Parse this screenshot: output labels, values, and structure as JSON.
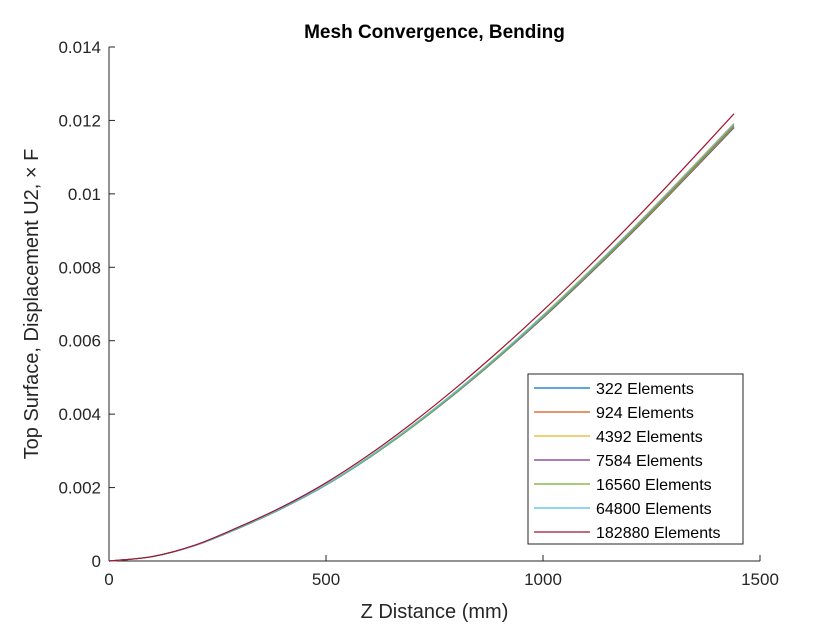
{
  "chart_data": {
    "type": "line",
    "title": "Mesh Convergence, Bending",
    "xlabel": "Z Distance (mm)",
    "ylabel": "Top Surface, Displacement U2, × F",
    "xlim": [
      0,
      1500
    ],
    "ylim": [
      0,
      0.014
    ],
    "xticks": [
      0,
      500,
      1000,
      1500
    ],
    "xtick_labels": [
      "0",
      "500",
      "1000",
      "1500"
    ],
    "yticks": [
      0,
      0.002,
      0.004,
      0.006,
      0.008,
      0.01,
      0.012,
      0.014
    ],
    "ytick_labels": [
      "0",
      "0.002",
      "0.004",
      "0.006",
      "0.008",
      "0.01",
      "0.012",
      "0.014"
    ],
    "grid": false,
    "legend_position": "bottom-right",
    "x": [
      0,
      100,
      200,
      300,
      400,
      500,
      600,
      700,
      800,
      900,
      1000,
      1100,
      1200,
      1300,
      1440
    ],
    "series": [
      {
        "name": "322 Elements",
        "color": "#0072BD",
        "values": [
          0,
          0.00012,
          0.00043,
          0.0009,
          0.00144,
          0.00207,
          0.00282,
          0.00366,
          0.00459,
          0.00558,
          0.00663,
          0.00774,
          0.00889,
          0.01009,
          0.01182
        ]
      },
      {
        "name": "924 Elements",
        "color": "#D95319",
        "values": [
          0,
          0.00012,
          0.00043,
          0.0009,
          0.00144,
          0.00208,
          0.00283,
          0.00368,
          0.00461,
          0.0056,
          0.00666,
          0.00777,
          0.00893,
          0.01013,
          0.01186
        ]
      },
      {
        "name": "4392 Elements",
        "color": "#EDB120",
        "values": [
          0,
          0.00012,
          0.00043,
          0.00091,
          0.00145,
          0.00209,
          0.00285,
          0.0037,
          0.00463,
          0.00563,
          0.0067,
          0.00782,
          0.00898,
          0.01019,
          0.01192
        ]
      },
      {
        "name": "7584 Elements",
        "color": "#7E2F8E",
        "values": [
          0,
          0.00012,
          0.00043,
          0.0009,
          0.00144,
          0.00207,
          0.00282,
          0.00366,
          0.00458,
          0.00557,
          0.00662,
          0.00773,
          0.00888,
          0.01008,
          0.0118
        ]
      },
      {
        "name": "16560 Elements",
        "color": "#77AC30",
        "values": [
          0,
          0.00012,
          0.00043,
          0.0009,
          0.00144,
          0.00207,
          0.00282,
          0.00366,
          0.00459,
          0.00558,
          0.00664,
          0.00775,
          0.0089,
          0.0101,
          0.01183
        ]
      },
      {
        "name": "64800 Elements",
        "color": "#4DBEEE",
        "values": [
          0,
          0.00012,
          0.00043,
          0.00091,
          0.00145,
          0.00208,
          0.00284,
          0.00369,
          0.00462,
          0.00562,
          0.00668,
          0.0078,
          0.00896,
          0.01017,
          0.0119
        ]
      },
      {
        "name": "182880 Elements",
        "color": "#A2142F",
        "values": [
          0,
          0.00012,
          0.00044,
          0.00093,
          0.00148,
          0.00213,
          0.0029,
          0.00377,
          0.00472,
          0.00574,
          0.00682,
          0.00796,
          0.00915,
          0.01039,
          0.01218
        ]
      }
    ]
  }
}
